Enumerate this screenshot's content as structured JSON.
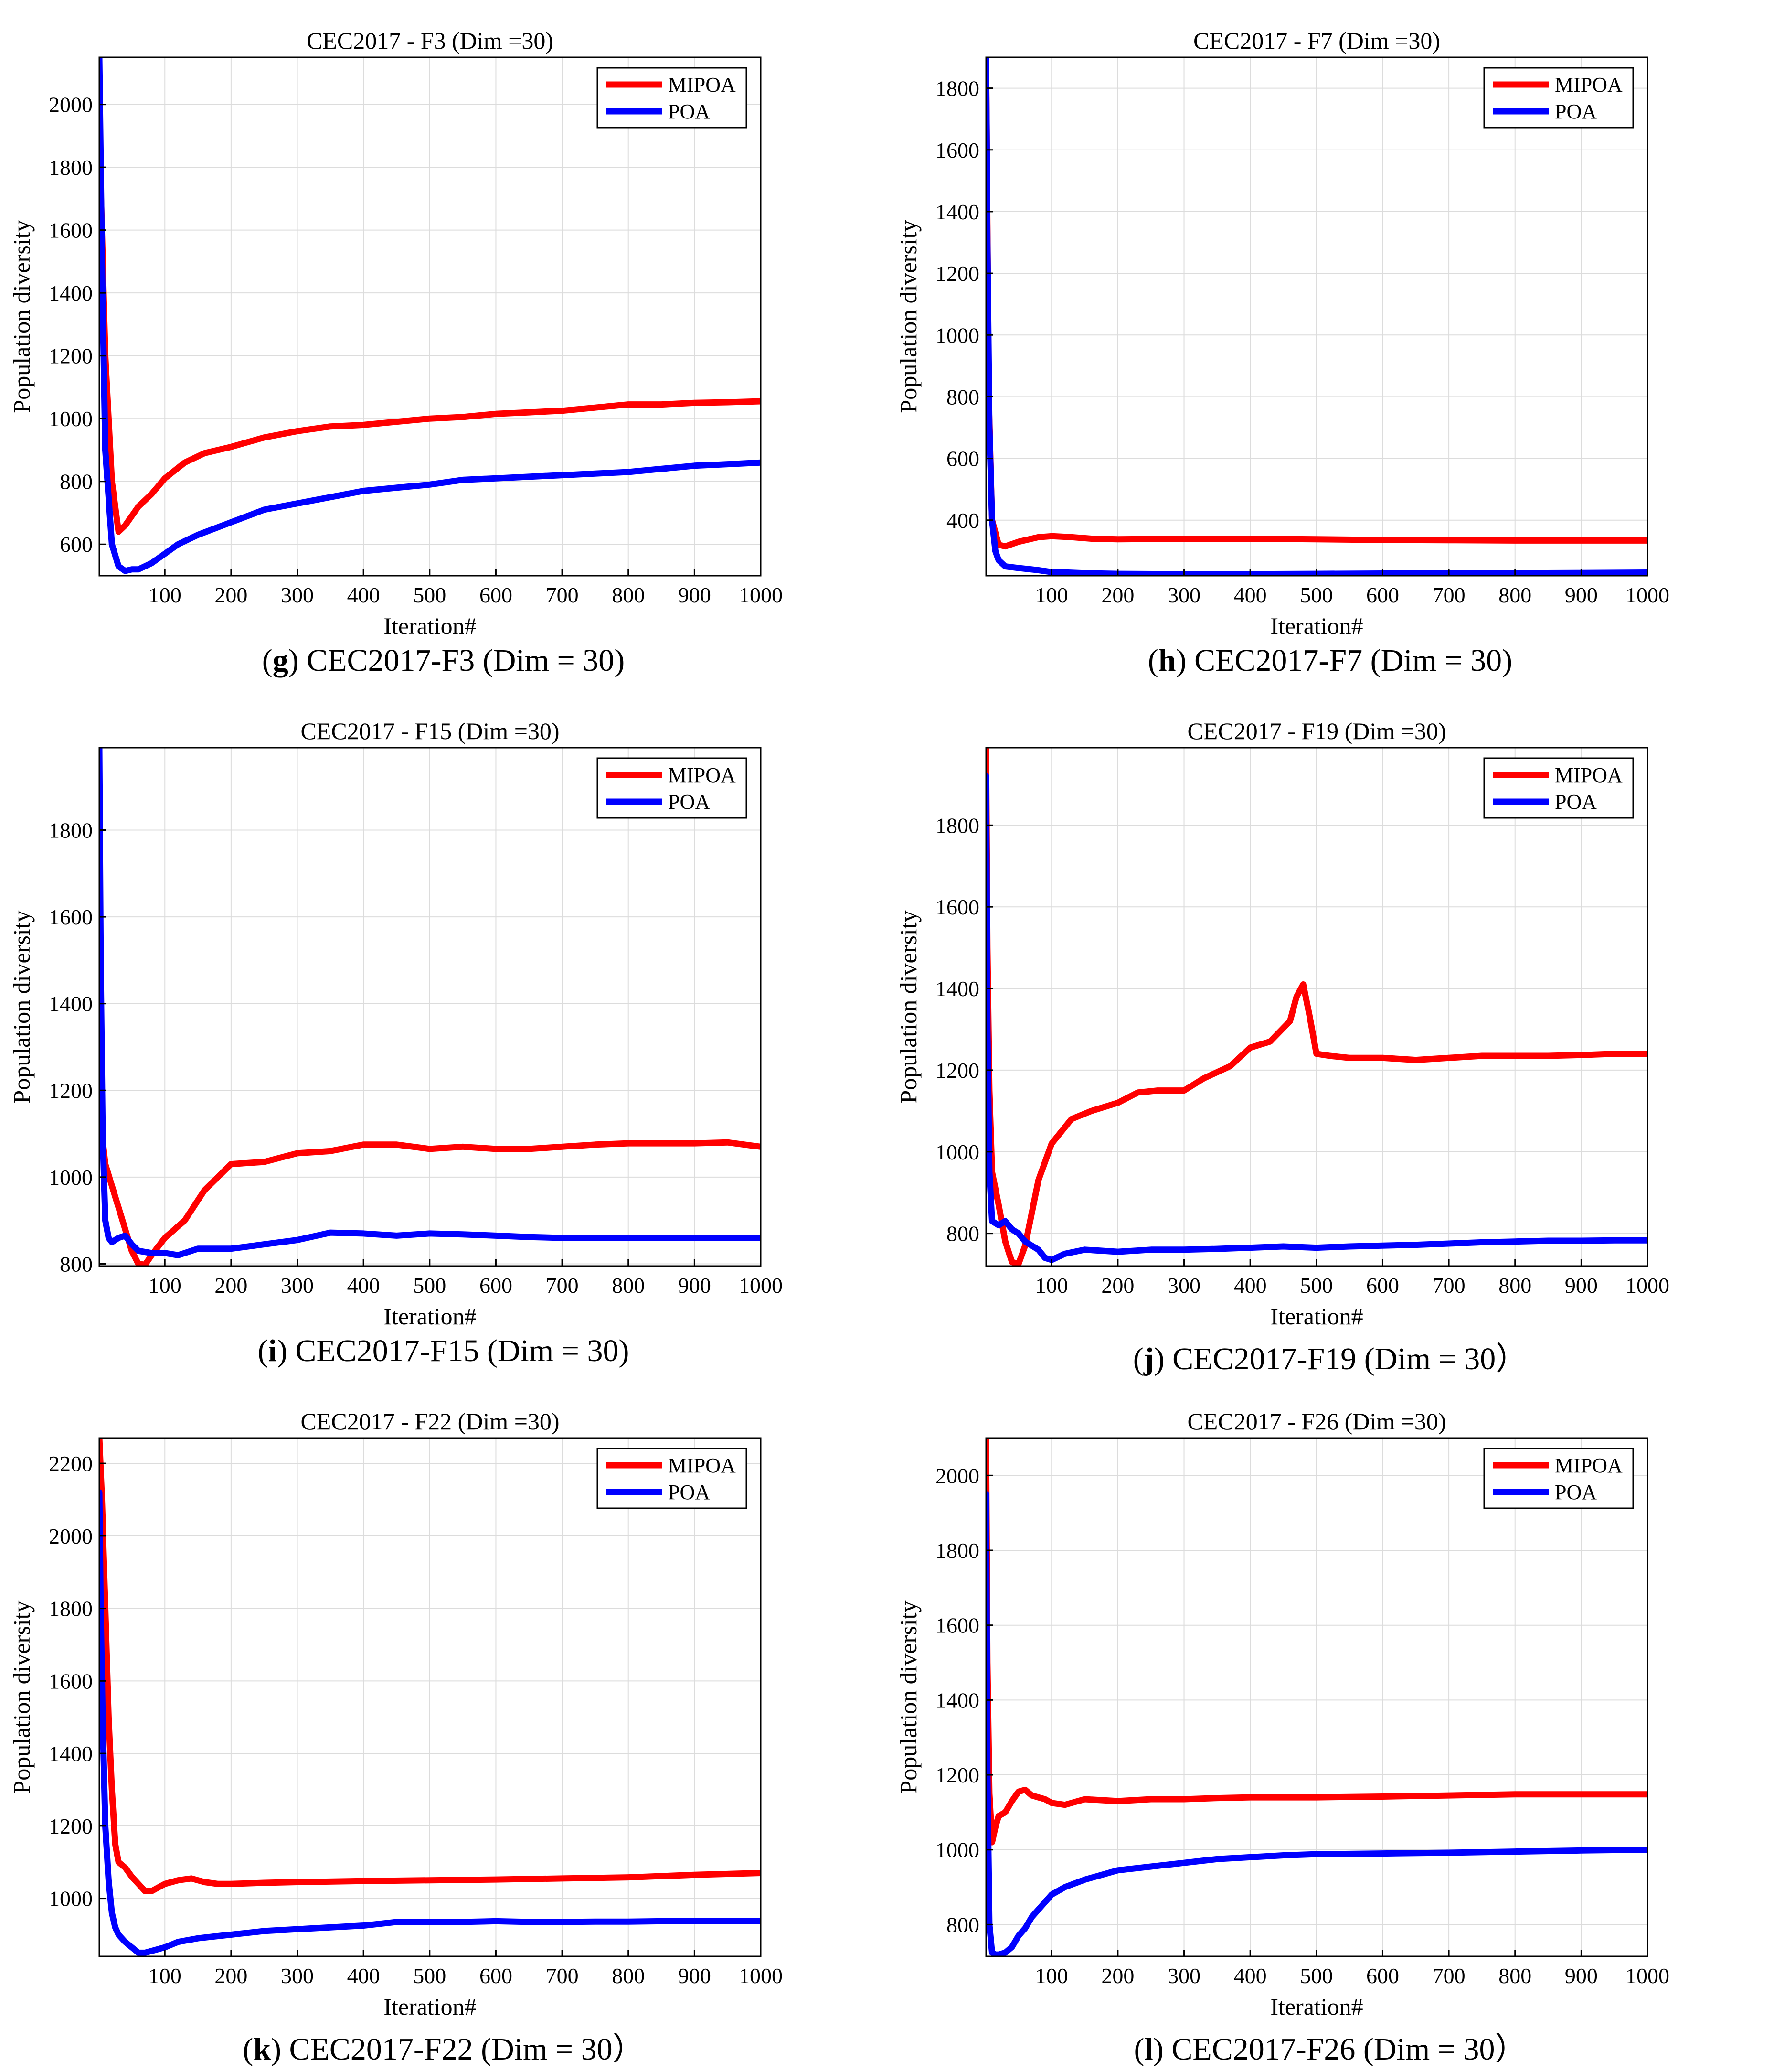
{
  "x_axis_label": "Iteration#",
  "y_axis_label": "Population diversity",
  "colors": {
    "MIPOA": "#ff0000",
    "POA": "#0000ff"
  },
  "chart_data": [
    {
      "letter": "g",
      "caption": "CEC2017-F3 (Dim = 30)",
      "title": "CEC2017 - F3 (Dim =30)",
      "type": "line",
      "xlim": [
        1,
        1000
      ],
      "ylim": [
        500,
        2150
      ],
      "xticks": [
        100,
        200,
        300,
        400,
        500,
        600,
        700,
        800,
        900,
        1000
      ],
      "yticks": [
        600,
        800,
        1000,
        1200,
        1400,
        1600,
        1800,
        2000
      ],
      "grid": true,
      "legend": "top-right",
      "series": [
        {
          "name": "MIPOA",
          "color": "#ff0000",
          "x": [
            1,
            10,
            20,
            30,
            40,
            60,
            80,
            100,
            130,
            160,
            200,
            250,
            300,
            350,
            400,
            450,
            500,
            550,
            600,
            650,
            700,
            750,
            800,
            850,
            900,
            950,
            1000
          ],
          "y": [
            1900,
            1200,
            800,
            640,
            660,
            720,
            760,
            810,
            860,
            890,
            910,
            940,
            960,
            975,
            980,
            990,
            1000,
            1005,
            1015,
            1020,
            1025,
            1035,
            1045,
            1045,
            1050,
            1052,
            1055
          ]
        },
        {
          "name": "POA",
          "color": "#0000ff",
          "x": [
            1,
            5,
            10,
            20,
            30,
            40,
            50,
            60,
            80,
            100,
            120,
            150,
            200,
            250,
            300,
            350,
            400,
            450,
            500,
            550,
            600,
            650,
            700,
            750,
            800,
            850,
            900,
            950,
            1000
          ],
          "y": [
            2150,
            1500,
            900,
            600,
            530,
            515,
            520,
            520,
            540,
            570,
            600,
            630,
            670,
            710,
            730,
            750,
            770,
            780,
            790,
            805,
            810,
            815,
            820,
            825,
            830,
            840,
            850,
            855,
            860
          ]
        }
      ]
    },
    {
      "letter": "h",
      "caption": "CEC2017-F7 (Dim = 30)",
      "title": "CEC2017 - F7 (Dim =30)",
      "type": "line",
      "xlim": [
        1,
        1000
      ],
      "ylim": [
        220,
        1900
      ],
      "xticks": [
        100,
        200,
        300,
        400,
        500,
        600,
        700,
        800,
        900,
        1000
      ],
      "yticks": [
        400,
        600,
        800,
        1000,
        1200,
        1400,
        1600,
        1800
      ],
      "grid": true,
      "legend": "top-right",
      "series": [
        {
          "name": "MIPOA",
          "color": "#ff0000",
          "x": [
            1,
            5,
            10,
            20,
            30,
            50,
            80,
            100,
            130,
            160,
            200,
            300,
            400,
            500,
            600,
            700,
            800,
            900,
            1000
          ],
          "y": [
            1900,
            800,
            400,
            320,
            315,
            330,
            345,
            348,
            345,
            340,
            338,
            340,
            340,
            338,
            336,
            335,
            334,
            334,
            334
          ]
        },
        {
          "name": "POA",
          "color": "#0000ff",
          "x": [
            1,
            3,
            6,
            10,
            15,
            20,
            30,
            50,
            80,
            100,
            150,
            200,
            300,
            400,
            500,
            600,
            700,
            800,
            900,
            1000
          ],
          "y": [
            1900,
            1300,
            700,
            400,
            300,
            270,
            250,
            245,
            238,
            232,
            228,
            226,
            225,
            225,
            226,
            227,
            228,
            228,
            229,
            230
          ]
        }
      ]
    },
    {
      "letter": "i",
      "caption": "CEC2017-F15 (Dim = 30)",
      "title": "CEC2017 - F15 (Dim =30)",
      "type": "line",
      "xlim": [
        1,
        1000
      ],
      "ylim": [
        795,
        1990
      ],
      "xticks": [
        100,
        200,
        300,
        400,
        500,
        600,
        700,
        800,
        900,
        1000
      ],
      "yticks": [
        800,
        1000,
        1200,
        1400,
        1600,
        1800
      ],
      "grid": true,
      "legend": "top-right",
      "series": [
        {
          "name": "MIPOA",
          "color": "#ff0000",
          "x": [
            1,
            5,
            10,
            20,
            30,
            40,
            50,
            60,
            70,
            80,
            100,
            130,
            160,
            200,
            250,
            300,
            350,
            400,
            450,
            500,
            550,
            600,
            650,
            700,
            750,
            800,
            850,
            900,
            950,
            1000
          ],
          "y": [
            1200,
            1100,
            1030,
            980,
            930,
            880,
            830,
            800,
            798,
            820,
            860,
            900,
            970,
            1030,
            1035,
            1055,
            1060,
            1075,
            1075,
            1065,
            1070,
            1065,
            1065,
            1070,
            1075,
            1078,
            1078,
            1078,
            1080,
            1070
          ]
        },
        {
          "name": "POA",
          "color": "#0000ff",
          "x": [
            1,
            3,
            6,
            10,
            15,
            20,
            30,
            40,
            50,
            60,
            80,
            100,
            120,
            150,
            200,
            250,
            300,
            350,
            400,
            450,
            500,
            550,
            600,
            650,
            700,
            750,
            800,
            850,
            900,
            950,
            1000
          ],
          "y": [
            1990,
            1500,
            1100,
            900,
            860,
            850,
            860,
            865,
            845,
            830,
            825,
            825,
            820,
            835,
            835,
            845,
            855,
            872,
            870,
            865,
            870,
            868,
            865,
            862,
            860,
            860,
            860,
            860,
            860,
            860,
            860
          ]
        }
      ]
    },
    {
      "letter": "j",
      "caption": "CEC2017-F19 (Dim = 30）",
      "title": "CEC2017 - F19 (Dim =30)",
      "type": "line",
      "xlim": [
        1,
        1000
      ],
      "ylim": [
        720,
        1990
      ],
      "xticks": [
        100,
        200,
        300,
        400,
        500,
        600,
        700,
        800,
        900,
        1000
      ],
      "yticks": [
        800,
        1000,
        1200,
        1400,
        1600,
        1800
      ],
      "grid": true,
      "legend": "top-right",
      "series": [
        {
          "name": "MIPOA",
          "color": "#ff0000",
          "x": [
            1,
            3,
            6,
            10,
            20,
            30,
            40,
            50,
            60,
            70,
            80,
            100,
            130,
            160,
            200,
            230,
            260,
            300,
            330,
            370,
            400,
            430,
            460,
            470,
            480,
            490,
            500,
            520,
            550,
            600,
            650,
            700,
            750,
            800,
            850,
            900,
            950,
            1000
          ],
          "y": [
            1990,
            1500,
            1150,
            950,
            870,
            780,
            730,
            725,
            770,
            850,
            930,
            1020,
            1080,
            1100,
            1120,
            1145,
            1150,
            1150,
            1180,
            1210,
            1255,
            1270,
            1320,
            1380,
            1410,
            1330,
            1240,
            1235,
            1230,
            1230,
            1225,
            1230,
            1235,
            1235,
            1235,
            1237,
            1240,
            1240
          ]
        },
        {
          "name": "POA",
          "color": "#0000ff",
          "x": [
            1,
            3,
            6,
            10,
            20,
            30,
            40,
            50,
            60,
            70,
            80,
            90,
            100,
            120,
            150,
            200,
            250,
            300,
            350,
            400,
            450,
            500,
            550,
            600,
            650,
            700,
            750,
            800,
            850,
            900,
            950,
            1000
          ],
          "y": [
            1920,
            1300,
            950,
            830,
            820,
            830,
            810,
            800,
            780,
            770,
            760,
            740,
            735,
            750,
            760,
            755,
            760,
            760,
            762,
            765,
            768,
            765,
            768,
            770,
            772,
            775,
            778,
            780,
            782,
            782,
            783,
            783
          ]
        }
      ]
    },
    {
      "letter": "k",
      "caption": "CEC2017-F22 (Dim = 30）",
      "title": "CEC2017 - F22 (Dim =30)",
      "type": "line",
      "xlim": [
        1,
        1000
      ],
      "ylim": [
        840,
        2270
      ],
      "xticks": [
        100,
        200,
        300,
        400,
        500,
        600,
        700,
        800,
        900,
        1000
      ],
      "yticks": [
        1000,
        1200,
        1400,
        1600,
        1800,
        2000,
        2200
      ],
      "grid": true,
      "legend": "top-right",
      "series": [
        {
          "name": "MIPOA",
          "color": "#ff0000",
          "x": [
            1,
            5,
            10,
            15,
            20,
            25,
            30,
            40,
            50,
            60,
            70,
            80,
            90,
            100,
            120,
            140,
            160,
            180,
            200,
            250,
            300,
            400,
            500,
            600,
            700,
            800,
            900,
            1000
          ],
          "y": [
            2270,
            2100,
            1800,
            1500,
            1300,
            1150,
            1100,
            1085,
            1060,
            1040,
            1020,
            1020,
            1030,
            1040,
            1050,
            1055,
            1045,
            1040,
            1040,
            1043,
            1045,
            1048,
            1050,
            1052,
            1055,
            1058,
            1065,
            1070
          ]
        },
        {
          "name": "POA",
          "color": "#0000ff",
          "x": [
            1,
            3,
            6,
            10,
            15,
            20,
            25,
            30,
            40,
            50,
            60,
            70,
            80,
            100,
            120,
            150,
            200,
            250,
            300,
            350,
            400,
            450,
            500,
            550,
            600,
            650,
            700,
            750,
            800,
            850,
            900,
            950,
            1000
          ],
          "y": [
            2120,
            1800,
            1500,
            1200,
            1050,
            960,
            920,
            900,
            880,
            865,
            850,
            850,
            855,
            865,
            880,
            890,
            900,
            910,
            915,
            920,
            925,
            935,
            935,
            935,
            937,
            935,
            935,
            936,
            936,
            937,
            937,
            937,
            938
          ]
        }
      ]
    },
    {
      "letter": "l",
      "caption": "CEC2017-F26 (Dim = 30）",
      "title": "CEC2017 - F26 (Dim =30)",
      "type": "line",
      "xlim": [
        1,
        1000
      ],
      "ylim": [
        715,
        2100
      ],
      "xticks": [
        100,
        200,
        300,
        400,
        500,
        600,
        700,
        800,
        900,
        1000
      ],
      "yticks": [
        800,
        1000,
        1200,
        1400,
        1600,
        1800,
        2000
      ],
      "grid": true,
      "legend": "top-right",
      "series": [
        {
          "name": "MIPOA",
          "color": "#ff0000",
          "x": [
            1,
            3,
            6,
            10,
            15,
            20,
            30,
            40,
            50,
            60,
            70,
            80,
            90,
            100,
            120,
            150,
            200,
            250,
            300,
            350,
            400,
            450,
            500,
            600,
            700,
            800,
            900,
            1000
          ],
          "y": [
            2100,
            1500,
            1150,
            1020,
            1060,
            1090,
            1100,
            1130,
            1155,
            1160,
            1145,
            1140,
            1135,
            1125,
            1120,
            1135,
            1130,
            1135,
            1135,
            1138,
            1140,
            1140,
            1140,
            1142,
            1145,
            1148,
            1148,
            1148
          ]
        },
        {
          "name": "POA",
          "color": "#0000ff",
          "x": [
            1,
            3,
            6,
            10,
            15,
            20,
            30,
            40,
            50,
            60,
            70,
            80,
            90,
            100,
            120,
            150,
            200,
            250,
            300,
            350,
            400,
            450,
            500,
            600,
            700,
            800,
            900,
            1000
          ],
          "y": [
            1950,
            1200,
            800,
            725,
            720,
            720,
            725,
            740,
            770,
            790,
            820,
            840,
            860,
            880,
            900,
            920,
            945,
            955,
            965,
            975,
            980,
            985,
            988,
            990,
            992,
            995,
            998,
            1000
          ]
        }
      ]
    }
  ]
}
